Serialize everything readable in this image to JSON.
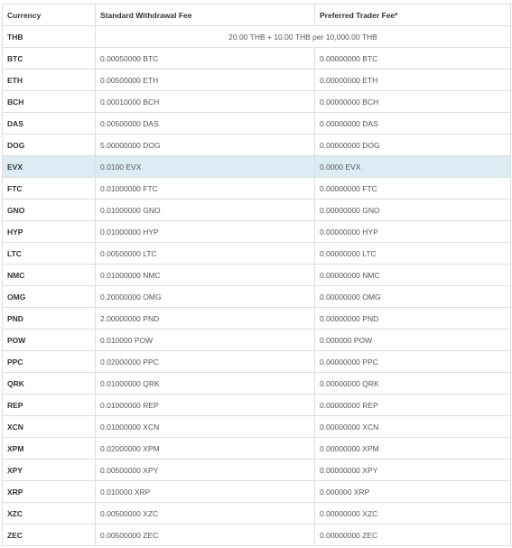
{
  "headers": {
    "currency": "Currency",
    "standard": "Standard Withdrawal Fee",
    "preferred": "Preferred Trader Fee*"
  },
  "thb_row": {
    "currency": "THB",
    "fee": "20.00 THB + 10.00 THB per 10,000.00 THB"
  },
  "rows": [
    {
      "currency": "BTC",
      "standard": "0.00050000 BTC",
      "preferred": "0.00000000 BTC"
    },
    {
      "currency": "ETH",
      "standard": "0.00500000 ETH",
      "preferred": "0.00000000 ETH"
    },
    {
      "currency": "BCH",
      "standard": "0.00010000 BCH",
      "preferred": "0.00000000 BCH"
    },
    {
      "currency": "DAS",
      "standard": "0.00500000 DAS",
      "preferred": "0.00000000 DAS"
    },
    {
      "currency": "DOG",
      "standard": "5.00000000 DOG",
      "preferred": "0.00000000 DOG"
    },
    {
      "currency": "EVX",
      "standard": "0.0100 EVX",
      "preferred": "0.0000 EVX",
      "highlighted": true
    },
    {
      "currency": "FTC",
      "standard": "0.01000000 FTC",
      "preferred": "0.00000000 FTC"
    },
    {
      "currency": "GNO",
      "standard": "0.01000000 GNO",
      "preferred": "0.00000000 GNO"
    },
    {
      "currency": "HYP",
      "standard": "0.01000000 HYP",
      "preferred": "0.00000000 HYP"
    },
    {
      "currency": "LTC",
      "standard": "0.00500000 LTC",
      "preferred": "0.00000000 LTC"
    },
    {
      "currency": "NMC",
      "standard": "0.01000000 NMC",
      "preferred": "0.00000000 NMC"
    },
    {
      "currency": "OMG",
      "standard": "0.20000000 OMG",
      "preferred": "0.00000000 OMG"
    },
    {
      "currency": "PND",
      "standard": "2.00000000 PND",
      "preferred": "0.00000000 PND"
    },
    {
      "currency": "POW",
      "standard": "0.010000 POW",
      "preferred": "0.000000 POW"
    },
    {
      "currency": "PPC",
      "standard": "0.02000000 PPC",
      "preferred": "0.00000000 PPC"
    },
    {
      "currency": "QRK",
      "standard": "0.01000000 QRK",
      "preferred": "0.00000000 QRK"
    },
    {
      "currency": "REP",
      "standard": "0.01000000 REP",
      "preferred": "0.00000000 REP"
    },
    {
      "currency": "XCN",
      "standard": "0.01000000 XCN",
      "preferred": "0.00000000 XCN"
    },
    {
      "currency": "XPM",
      "standard": "0.02000000 XPM",
      "preferred": "0.00000000 XPM"
    },
    {
      "currency": "XPY",
      "standard": "0.00500000 XPY",
      "preferred": "0.00000000 XPY"
    },
    {
      "currency": "XRP",
      "standard": "0.010000 XRP",
      "preferred": "0.000000 XRP"
    },
    {
      "currency": "XZC",
      "standard": "0.00500000 XZC",
      "preferred": "0.00000000 XZC"
    },
    {
      "currency": "ZEC",
      "standard": "0.00500000 ZEC",
      "preferred": "0.00000000 ZEC"
    }
  ],
  "colors": {
    "highlight_row": "#dcecf5",
    "border": "#dddddd"
  }
}
